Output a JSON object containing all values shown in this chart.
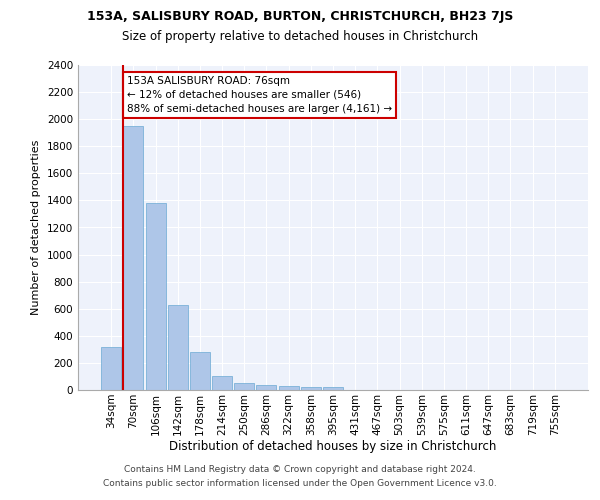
{
  "title1": "153A, SALISBURY ROAD, BURTON, CHRISTCHURCH, BH23 7JS",
  "title2": "Size of property relative to detached houses in Christchurch",
  "xlabel": "Distribution of detached houses by size in Christchurch",
  "ylabel": "Number of detached properties",
  "categories": [
    "34sqm",
    "70sqm",
    "106sqm",
    "142sqm",
    "178sqm",
    "214sqm",
    "250sqm",
    "286sqm",
    "322sqm",
    "358sqm",
    "395sqm",
    "431sqm",
    "467sqm",
    "503sqm",
    "539sqm",
    "575sqm",
    "611sqm",
    "647sqm",
    "683sqm",
    "719sqm",
    "755sqm"
  ],
  "values": [
    315,
    1950,
    1380,
    630,
    280,
    100,
    50,
    35,
    30,
    25,
    20,
    0,
    0,
    0,
    0,
    0,
    0,
    0,
    0,
    0,
    0
  ],
  "bar_color": "#aec6e8",
  "bar_edge_color": "#6aaad4",
  "annotation_line_color": "#cc0000",
  "annotation_box_text": "153A SALISBURY ROAD: 76sqm\n← 12% of detached houses are smaller (546)\n88% of semi-detached houses are larger (4,161) →",
  "annotation_box_color": "#cc0000",
  "ylim": [
    0,
    2400
  ],
  "yticks": [
    0,
    200,
    400,
    600,
    800,
    1000,
    1200,
    1400,
    1600,
    1800,
    2000,
    2200,
    2400
  ],
  "footer1": "Contains HM Land Registry data © Crown copyright and database right 2024.",
  "footer2": "Contains public sector information licensed under the Open Government Licence v3.0.",
  "background_color": "#eef2fb",
  "grid_color": "#ffffff",
  "title1_fontsize": 9,
  "title2_fontsize": 8.5,
  "xlabel_fontsize": 8.5,
  "ylabel_fontsize": 8,
  "tick_fontsize": 7.5,
  "annotation_fontsize": 7.5,
  "footer_fontsize": 6.5
}
